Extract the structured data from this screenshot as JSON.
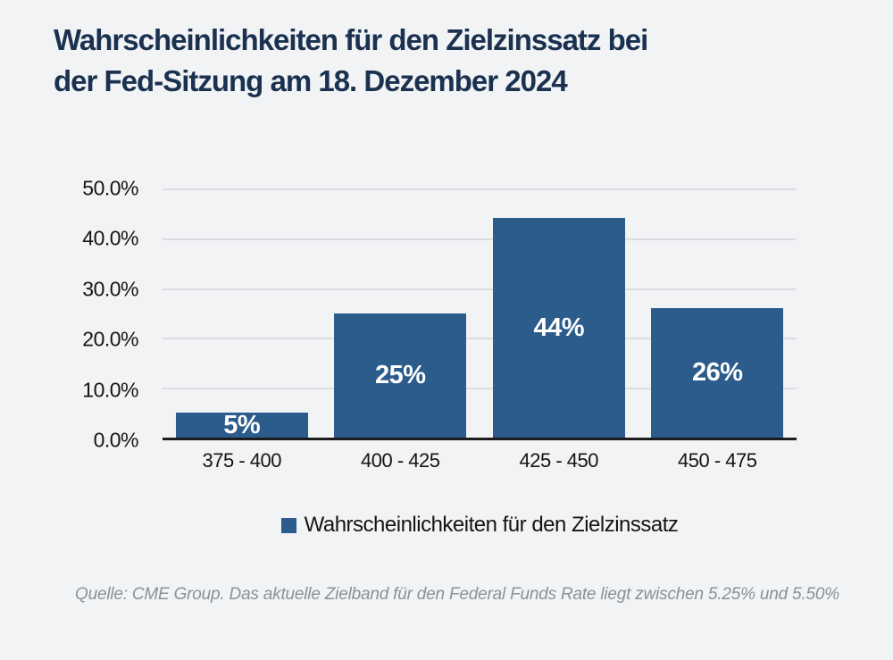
{
  "title": {
    "line1": "Wahrscheinlichkeiten für den Zielzinssatz bei",
    "line2": "der Fed-Sitzung am 18. Dezember 2024"
  },
  "chart_data": {
    "type": "bar",
    "title": "Wahrscheinlichkeiten für den Zielzinssatz bei der Fed-Sitzung am 18. Dezember 2024",
    "categories": [
      "375 - 400",
      "400 - 425",
      "425 - 450",
      "450 - 475"
    ],
    "series": [
      {
        "name": "Wahrscheinlichkeiten für den Zielzinssatz",
        "values": [
          5,
          25,
          44,
          26
        ]
      }
    ],
    "bar_labels": [
      "5%",
      "25%",
      "44%",
      "26%"
    ],
    "xlabel": "",
    "ylabel": "",
    "ylim": [
      0,
      50
    ],
    "y_ticks": [
      "0.0%",
      "10.0%",
      "20.0%",
      "30.0%",
      "40.0%",
      "50.0%"
    ],
    "grid": true,
    "legend_position": "bottom",
    "bar_color": "#2b5c8b"
  },
  "legend": {
    "label": "Wahrscheinlichkeiten für den Zielzinssatz",
    "swatch_color": "#2b5c8b"
  },
  "source_note": "Quelle: CME Group. Das aktuelle Zielband für den Federal Funds Rate liegt zwischen 5.25% und 5.50%",
  "colors": {
    "background": "#f1f3f5",
    "title_text": "#1b3150",
    "bar": "#2b5c8b",
    "bar_label_text": "#ffffff",
    "axis_line": "#1c1c1c",
    "gridline": "#dbdde0",
    "tick_text": "#141414",
    "source_text": "#8b909a"
  }
}
